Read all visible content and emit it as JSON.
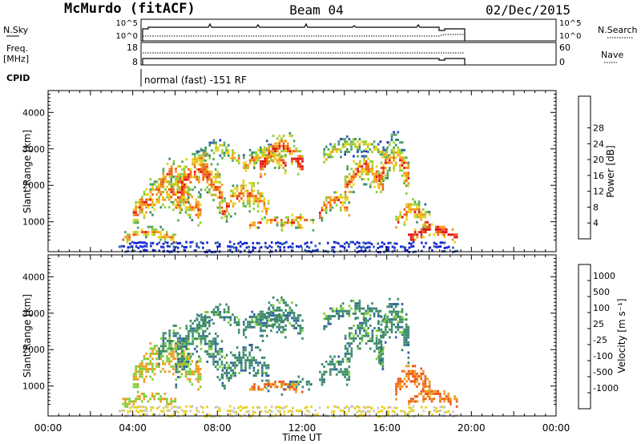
{
  "header": {
    "station": "McMurdo (fitACF)",
    "beam": "Beam 04",
    "date": "02/Dec/2015"
  },
  "status_panels": {
    "nsky_label": "N.Sky",
    "nsearch_label": "N.Search",
    "nsky_ticks": [
      "10^5",
      "10^0"
    ],
    "nsearch_ticks": [
      "10^5",
      "10^0"
    ],
    "freq_label_1": "Freq.",
    "freq_label_2": "[MHz]",
    "freq_ticks": [
      "18",
      "8"
    ],
    "nave_label": "Nave",
    "nave_ticks": [
      "60",
      "0"
    ],
    "cpid_label": "CPID",
    "cpid_text": "normal (fast) -151 RF"
  },
  "colors": {
    "power": [
      "#1424d8",
      "#2e5ea8",
      "#3c8a6c",
      "#52a85a",
      "#8fcf3a",
      "#e8d21a",
      "#f29a18",
      "#ee5a14",
      "#e01414"
    ],
    "velocity": [
      "#e01414",
      "#ee5a14",
      "#f29a18",
      "#e8d21a",
      "#c8c8c8",
      "#7ecf3a",
      "#3c8a6c",
      "#2e5ea8",
      "#1424d8"
    ]
  },
  "chart_data": [
    {
      "type": "heatmap",
      "title": "Power",
      "ylabel": "Slant Range [km]",
      "xlabel": "",
      "xlim": [
        "00:00",
        "24:00"
      ],
      "ylim": [
        180,
        4600
      ],
      "yticks": [
        "1000",
        "2000",
        "3000",
        "4000"
      ],
      "colorbar_label": "Power [dB]",
      "colorbar_ticks": [
        "4",
        "8",
        "12",
        "16",
        "20",
        "24",
        "28"
      ],
      "colorbar_range": [
        0,
        32
      ],
      "data_time_range": [
        "03:20",
        "19:20"
      ]
    },
    {
      "type": "heatmap",
      "title": "Velocity",
      "ylabel": "Slant Range [km]",
      "xlabel": "Time UT",
      "xlim": [
        "00:00",
        "24:00"
      ],
      "ylim": [
        180,
        4600
      ],
      "yticks": [
        "1000",
        "2000",
        "3000",
        "4000"
      ],
      "xticks": [
        "00:00",
        "04:00",
        "08:00",
        "12:00",
        "16:00",
        "20:00",
        "00:00"
      ],
      "colorbar_label": "Velocity [m s⁻¹]",
      "colorbar_ticks": [
        "1000",
        "500",
        "100",
        "25",
        "-25",
        "-100",
        "-500",
        "-1000"
      ],
      "data_time_range": [
        "03:20",
        "19:20"
      ]
    }
  ]
}
